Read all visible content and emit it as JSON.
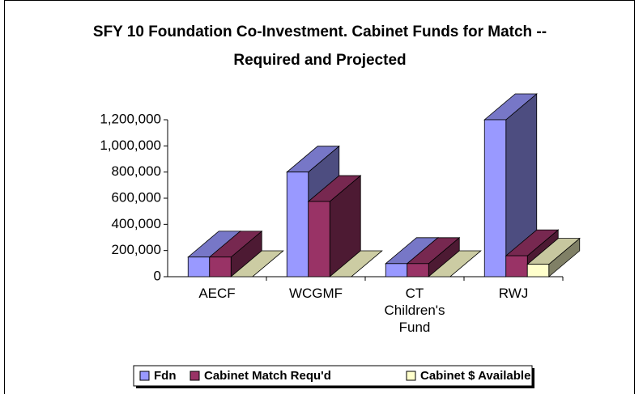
{
  "chart_data": {
    "type": "bar3d",
    "title": "SFY 10 Foundation Co-Investment. Cabinet Funds for Match -- Required and Projected",
    "categories": [
      "AECF",
      "WCGMF",
      "CT Children's Fund",
      "RWJ"
    ],
    "series": [
      {
        "name": "Fdn",
        "color": "#9999ff",
        "values": [
          150000,
          800000,
          100000,
          1200000
        ]
      },
      {
        "name": "Cabinet Match Requ'd",
        "color": "#993366",
        "values": [
          150000,
          575000,
          100000,
          160000
        ]
      },
      {
        "name": "Cabinet $ Available",
        "color": "#ffffcc",
        "values": [
          0,
          0,
          0,
          95000
        ]
      }
    ],
    "ylim": [
      0,
      1200000
    ],
    "yticks": [
      0,
      {
        "value": 200000,
        "label": "200,000"
      },
      {
        "value": 400000,
        "label": "400,000"
      },
      {
        "value": 600000,
        "label": "600,000"
      },
      {
        "value": 800000,
        "label": "800,000"
      },
      {
        "value": 1000000,
        "label": "1,000,000"
      },
      {
        "value": 1200000,
        "label": "1,200,000"
      }
    ],
    "legend": "bottom"
  }
}
